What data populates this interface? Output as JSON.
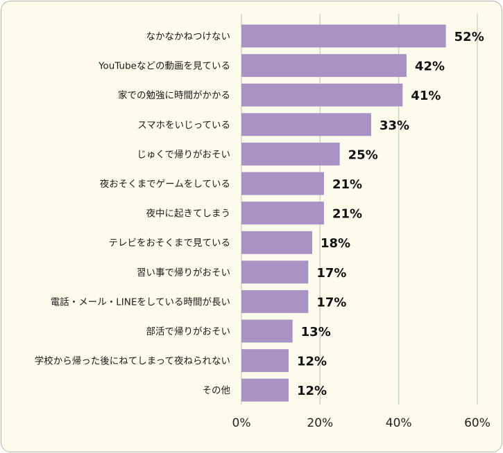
{
  "chart_data": {
    "type": "bar",
    "orientation": "horizontal",
    "categories": [
      "なかなかねつけない",
      "YouTubeなどの動画を見ている",
      "家での勉強に時間がかかる",
      "スマホをいじっている",
      "じゅくで帰りがおそい",
      "夜おそくまでゲームをしている",
      "夜中に起きてしまう",
      "テレビをおそくまで見ている",
      "習い事で帰りがおそい",
      "電話・メール・LINEをしている時間が長い",
      "部活で帰りがおそい",
      "学校から帰った後にねてしまって夜ねられない",
      "その他"
    ],
    "values": [
      52,
      42,
      41,
      33,
      25,
      21,
      21,
      18,
      17,
      17,
      13,
      12,
      12
    ],
    "value_labels": [
      "52%",
      "42%",
      "41%",
      "33%",
      "25%",
      "21%",
      "21%",
      "18%",
      "17%",
      "17%",
      "13%",
      "12%",
      "12%"
    ],
    "xlim": [
      0,
      60
    ],
    "x_ticks": [
      0,
      20,
      40,
      60
    ],
    "x_tick_labels": [
      "0%",
      "20%",
      "40%",
      "60%"
    ],
    "grid": true,
    "title": "",
    "xlabel": "",
    "ylabel": "",
    "colors": {
      "bar": "#a893c4",
      "grid": "#d4d1c4",
      "background": "#fdfbec"
    }
  }
}
